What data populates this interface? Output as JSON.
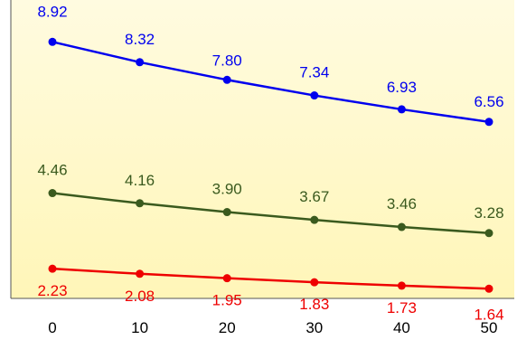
{
  "chart_data": {
    "type": "line",
    "title": "",
    "xlabel": "",
    "ylabel": "",
    "x": [
      0,
      10,
      20,
      30,
      40,
      50
    ],
    "ylim": [
      0,
      10
    ],
    "grid": false,
    "legend": "none",
    "background_gradient": [
      "#fffbe0",
      "#fff6b8"
    ],
    "series": [
      {
        "color": "#0000ee",
        "values": [
          8.92,
          8.32,
          7.8,
          7.34,
          6.93,
          6.56
        ],
        "labels": [
          "8.92",
          "8.32",
          "7.80",
          "7.34",
          "6.93",
          "6.56"
        ]
      },
      {
        "color": "#3a5a1e",
        "values": [
          4.46,
          4.16,
          3.9,
          3.67,
          3.46,
          3.28
        ],
        "labels": [
          "4.46",
          "4.16",
          "3.90",
          "3.67",
          "3.46",
          "3.28"
        ]
      },
      {
        "color": "#ee0000",
        "values": [
          2.23,
          2.08,
          1.95,
          1.83,
          1.73,
          1.64
        ],
        "labels": [
          "2.23",
          "2.08",
          "1.95",
          "1.83",
          "1.73",
          "1.64"
        ]
      }
    ],
    "x_tick_labels": [
      "0",
      "10",
      "20",
      "30",
      "40",
      "50"
    ]
  }
}
